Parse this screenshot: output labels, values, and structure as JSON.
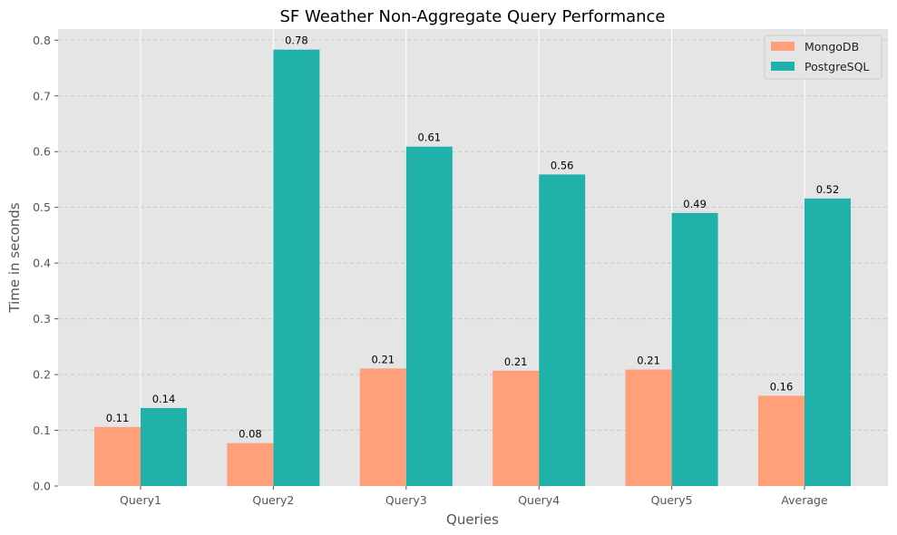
{
  "chart_data": {
    "type": "bar",
    "title": "SF Weather Non-Aggregate Query Performance",
    "xlabel": "Queries",
    "ylabel": "Time in seconds",
    "categories": [
      "Query1",
      "Query2",
      "Query3",
      "Query4",
      "Query5",
      "Average"
    ],
    "series": [
      {
        "name": "MongoDB",
        "color": "#FFA07A",
        "values": [
          0.106,
          0.077,
          0.211,
          0.207,
          0.209,
          0.162
        ],
        "data_labels": [
          "0.11",
          "0.08",
          "0.21",
          "0.21",
          "0.21",
          "0.16"
        ]
      },
      {
        "name": "PostgreSQL",
        "color": "#20B2AA",
        "values": [
          0.14,
          0.783,
          0.609,
          0.559,
          0.49,
          0.516
        ],
        "data_labels": [
          "0.14",
          "0.78",
          "0.61",
          "0.56",
          "0.49",
          "0.52"
        ]
      }
    ],
    "ylim": [
      0,
      0.82
    ],
    "yticks": [
      "0.0",
      "0.1",
      "0.2",
      "0.3",
      "0.4",
      "0.5",
      "0.6",
      "0.7",
      "0.8"
    ],
    "ytick_values": [
      0,
      0.1,
      0.2,
      0.3,
      0.4,
      0.5,
      0.6,
      0.7,
      0.8
    ],
    "grid": "y dashed, x solid white",
    "legend_position": "top-right",
    "background_color": "#E5E5E5"
  }
}
